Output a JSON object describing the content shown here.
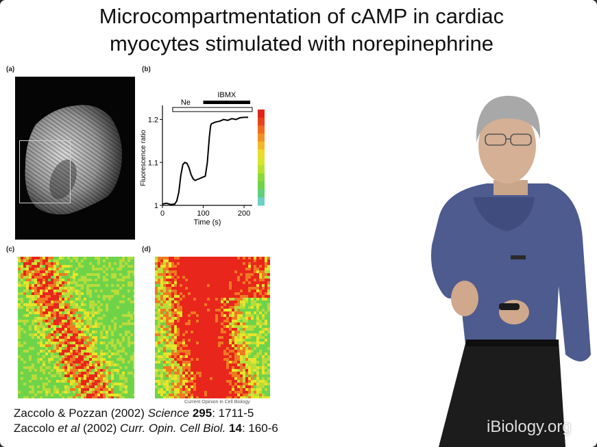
{
  "slide": {
    "title_line1": "Microcompartmentation of cAMP in cardiac",
    "title_line2": "myocytes stimulated with norepinephrine"
  },
  "panels": {
    "a_label": "(a)",
    "b_label": "(b)",
    "c_label": "(c)",
    "d_label": "(d)"
  },
  "chart_data": {
    "type": "line",
    "ylabel": "Fluorescence ratio",
    "xlabel": "Time (s)",
    "xlim": [
      0,
      220
    ],
    "ylim": [
      1.0,
      1.22
    ],
    "xticks": [
      "0",
      "100",
      "200"
    ],
    "yticks": [
      "1",
      "1.1",
      "1.2"
    ],
    "bars": [
      {
        "label": "Ne",
        "start": 25,
        "end": 220,
        "style": "open"
      },
      {
        "label": "IBMX",
        "start": 100,
        "end": 215,
        "style": "filled"
      }
    ],
    "x": [
      0,
      10,
      20,
      30,
      35,
      40,
      45,
      50,
      55,
      60,
      65,
      70,
      75,
      80,
      85,
      90,
      95,
      100,
      105,
      110,
      115,
      118,
      120,
      125,
      130,
      140,
      150,
      160,
      170,
      180,
      190,
      200,
      210
    ],
    "y": [
      1.003,
      1.005,
      1.002,
      1.003,
      1.01,
      1.03,
      1.07,
      1.095,
      1.1,
      1.098,
      1.088,
      1.072,
      1.062,
      1.058,
      1.06,
      1.062,
      1.064,
      1.066,
      1.068,
      1.1,
      1.16,
      1.185,
      1.19,
      1.192,
      1.194,
      1.196,
      1.2,
      1.198,
      1.202,
      1.2,
      1.204,
      1.205,
      1.205
    ]
  },
  "credit": "Current Opinion in Cell Biology",
  "references": {
    "ref1": {
      "authors": "Zaccolo & Pozzan (2002) ",
      "journal": "Science",
      "volume": "295",
      "pages": ": 1711-5"
    },
    "ref2": {
      "author1": "Zaccolo ",
      "etal": "et al",
      "year": " (2002) ",
      "journal": "Curr. Opin. Cell Biol.",
      "volume": "14",
      "pages": ": 160-6"
    }
  },
  "watermark": "iBiology.org",
  "colors": {
    "trace": "#000000",
    "heat_high": "#e8261b",
    "heat_mid": "#e9e52a",
    "heat_low": "#6fd34a",
    "shirt": "#4d5b8f"
  }
}
